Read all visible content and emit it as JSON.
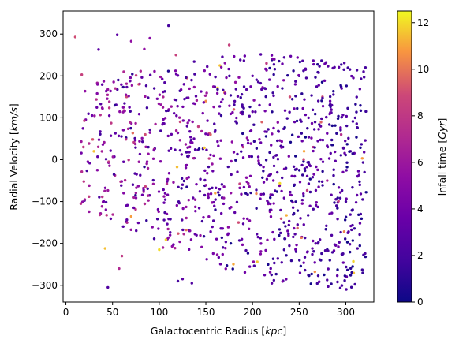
{
  "chart_data": {
    "type": "scatter",
    "title": "",
    "xlabel_main": "Galactocentric Radius [",
    "xlabel_unit": "kpc",
    "xlabel_end": "]",
    "ylabel_main": "Radial Velocity [",
    "ylabel_unit": "km/s",
    "ylabel_end": "]",
    "colorbar_label_main": "Infall time [",
    "colorbar_label_unit": "Gyr",
    "colorbar_label_end": "]",
    "xlim": [
      -3,
      330
    ],
    "ylim": [
      -340,
      355
    ],
    "clim": [
      0,
      12.5
    ],
    "colormap": "plasma",
    "x_ticks": [
      0,
      50,
      100,
      150,
      200,
      250,
      300
    ],
    "y_ticks": [
      -300,
      -200,
      -100,
      0,
      100,
      200,
      300
    ],
    "colorbar_ticks": [
      0,
      2,
      4,
      6,
      8,
      10,
      12
    ],
    "x_tick_labels": [
      "0",
      "50",
      "100",
      "150",
      "200",
      "250",
      "300"
    ],
    "y_tick_labels": [
      "−300",
      "−200",
      "−100",
      "0",
      "100",
      "200",
      "300"
    ],
    "colorbar_tick_labels": [
      "0",
      "2",
      "4",
      "6",
      "8",
      "10",
      "12"
    ],
    "grid": false,
    "num_points_approx": 1100,
    "points": [
      [
        10,
        293,
        9.0
      ],
      [
        17,
        203,
        8.5
      ],
      [
        16,
        -105,
        7.5
      ],
      [
        30,
        20,
        11.5
      ],
      [
        35,
        263,
        3.0
      ],
      [
        42,
        -212,
        11.5
      ],
      [
        45,
        -305,
        2.5
      ],
      [
        55,
        298,
        3.0
      ],
      [
        57,
        -260,
        7.0
      ],
      [
        60,
        -230,
        8.0
      ],
      [
        62,
        210,
        7.0
      ],
      [
        65,
        150,
        9.0
      ],
      [
        70,
        283,
        5.5
      ],
      [
        78,
        180,
        9.5
      ],
      [
        84,
        264,
        5.5
      ],
      [
        85,
        60,
        9.0
      ],
      [
        90,
        290,
        5.0
      ],
      [
        95,
        211,
        5.0
      ],
      [
        100,
        -215,
        12.0
      ],
      [
        104,
        -210,
        6.5
      ],
      [
        110,
        320,
        2.0
      ],
      [
        112,
        -142,
        2.0
      ],
      [
        118,
        250,
        8.5
      ],
      [
        120,
        -290,
        2.0
      ],
      [
        125,
        -285,
        3.0
      ],
      [
        130,
        195,
        9.5
      ],
      [
        135,
        -295,
        2.5
      ],
      [
        150,
        140,
        10.5
      ],
      [
        155,
        60,
        9.5
      ],
      [
        160,
        -80,
        11.0
      ],
      [
        165,
        225,
        11.5
      ],
      [
        170,
        160,
        10.0
      ],
      [
        175,
        274,
        8.5
      ],
      [
        180,
        120,
        9.5
      ],
      [
        185,
        -150,
        9.0
      ],
      [
        190,
        30,
        8.0
      ],
      [
        200,
        200,
        3.0
      ],
      [
        210,
        90,
        9.5
      ],
      [
        215,
        230,
        8.0
      ],
      [
        220,
        -120,
        4.0
      ],
      [
        225,
        10,
        2.5
      ],
      [
        230,
        -175,
        2.0
      ],
      [
        240,
        150,
        9.0
      ],
      [
        245,
        -60,
        2.0
      ],
      [
        250,
        200,
        2.0
      ],
      [
        255,
        -155,
        3.0
      ],
      [
        260,
        100,
        3.0
      ],
      [
        265,
        30,
        7.5
      ],
      [
        270,
        -200,
        2.5
      ],
      [
        275,
        150,
        9.0
      ],
      [
        280,
        -50,
        6.5
      ],
      [
        285,
        130,
        2.5
      ],
      [
        290,
        -110,
        2.0
      ],
      [
        295,
        60,
        7.5
      ],
      [
        300,
        -100,
        2.0
      ],
      [
        305,
        20,
        2.5
      ],
      [
        310,
        100,
        2.0
      ],
      [
        315,
        -60,
        2.5
      ],
      [
        320,
        -30,
        2.0
      ],
      [
        318,
        -95,
        2.0
      ]
    ]
  }
}
